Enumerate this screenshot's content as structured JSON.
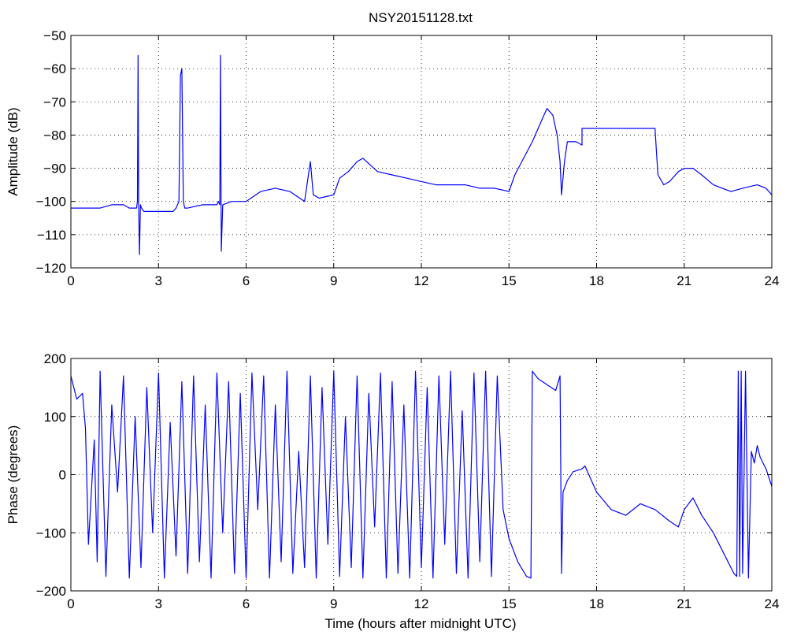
{
  "figure": {
    "title": "NSY20151128.txt",
    "xlabel": "Time (hours after midnight UTC)"
  },
  "chart_data": [
    {
      "type": "line",
      "title": "NSY20151128.txt",
      "xlabel": "",
      "ylabel": "Amplitude (dB)",
      "xlim": [
        0,
        24
      ],
      "ylim": [
        -120,
        -50
      ],
      "xticks": [
        0,
        3,
        6,
        9,
        12,
        15,
        18,
        21,
        24
      ],
      "yticks": [
        -120,
        -110,
        -100,
        -90,
        -80,
        -70,
        -60,
        -50
      ],
      "grid": true,
      "line_color": "#0000ff",
      "series": [
        {
          "x": [
            0,
            0.5,
            1.0,
            1.4,
            1.5,
            1.8,
            2.0,
            2.25,
            2.28,
            2.3,
            2.32,
            2.35,
            2.38,
            2.42,
            2.5,
            3.0,
            3.5,
            3.6,
            3.7,
            3.75,
            3.8,
            3.85,
            3.9,
            4.0,
            4.5,
            5.0,
            5.05,
            5.1,
            5.12,
            5.15,
            5.2,
            5.5,
            6.0,
            6.5,
            7.0,
            7.5,
            8.0,
            8.2,
            8.3,
            8.5,
            9.0,
            9.2,
            9.5,
            9.8,
            10.0,
            10.5,
            11.0,
            11.5,
            12.0,
            12.5,
            13.0,
            13.5,
            14.0,
            14.5,
            15.0,
            15.2,
            15.5,
            15.8,
            16.0,
            16.2,
            16.3,
            16.5,
            16.65,
            16.75,
            16.8,
            16.9,
            17.0,
            17.3,
            17.5,
            17.5,
            18.0,
            18.5,
            19.0,
            19.5,
            20.0,
            20.05,
            20.1,
            20.3,
            20.5,
            20.8,
            21.0,
            21.3,
            21.6,
            22.0,
            22.3,
            22.6,
            23.0,
            23.5,
            23.8,
            24.0
          ],
          "y": [
            -102,
            -102,
            -102,
            -101,
            -101,
            -101,
            -102,
            -102,
            -100,
            -56,
            -100,
            -116,
            -101,
            -102,
            -103,
            -103,
            -103,
            -102,
            -100,
            -62,
            -60,
            -100,
            -102,
            -102,
            -101,
            -101,
            -100,
            -101,
            -56,
            -115,
            -101,
            -100,
            -100,
            -97,
            -96,
            -97,
            -100,
            -88,
            -98,
            -99,
            -98,
            -93,
            -91,
            -88,
            -87,
            -91,
            -92,
            -93,
            -94,
            -95,
            -95,
            -95,
            -96,
            -96,
            -97,
            -92,
            -87,
            -82,
            -78,
            -74,
            -72,
            -74,
            -80,
            -88,
            -98,
            -88,
            -82,
            -82,
            -83,
            -78,
            -78,
            -78,
            -78,
            -78,
            -78,
            -85,
            -92,
            -95,
            -94,
            -91,
            -90,
            -90,
            -92,
            -95,
            -96,
            -97,
            -96,
            -95,
            -96,
            -98
          ]
        }
      ]
    },
    {
      "type": "line",
      "title": "",
      "xlabel": "Time (hours after midnight UTC)",
      "ylabel": "Phase (degrees)",
      "xlim": [
        0,
        24
      ],
      "ylim": [
        -200,
        200
      ],
      "xticks": [
        0,
        3,
        6,
        9,
        12,
        15,
        18,
        21,
        24
      ],
      "yticks": [
        -200,
        -100,
        0,
        100,
        200
      ],
      "grid": true,
      "line_color": "#0000ff",
      "series": [
        {
          "x": [
            0,
            0.2,
            0.4,
            0.5,
            0.6,
            0.8,
            0.9,
            1.0,
            1.2,
            1.4,
            1.6,
            1.8,
            2.0,
            2.2,
            2.4,
            2.6,
            2.8,
            3.0,
            3.2,
            3.4,
            3.6,
            3.8,
            4.0,
            4.2,
            4.4,
            4.6,
            4.8,
            5.0,
            5.2,
            5.4,
            5.6,
            5.8,
            6.0,
            6.2,
            6.4,
            6.6,
            6.8,
            7.0,
            7.2,
            7.4,
            7.6,
            7.8,
            8.0,
            8.2,
            8.4,
            8.6,
            8.8,
            9.0,
            9.2,
            9.4,
            9.6,
            9.8,
            10.0,
            10.2,
            10.4,
            10.6,
            10.8,
            11.0,
            11.2,
            11.4,
            11.6,
            11.8,
            12.0,
            12.2,
            12.4,
            12.6,
            12.8,
            13.0,
            13.2,
            13.4,
            13.6,
            13.8,
            14.0,
            14.2,
            14.4,
            14.6,
            14.8,
            15.0,
            15.3,
            15.6,
            15.75,
            15.8,
            16.0,
            16.3,
            16.6,
            16.75,
            16.8,
            16.85,
            17.0,
            17.2,
            17.5,
            17.6,
            18.0,
            18.5,
            19.0,
            19.5,
            20.0,
            20.5,
            20.8,
            21.0,
            21.3,
            21.6,
            22.0,
            22.4,
            22.7,
            22.8,
            22.85,
            22.9,
            22.95,
            23.0,
            23.1,
            23.2,
            23.3,
            23.4,
            23.5,
            23.6,
            23.8,
            24.0
          ],
          "y": [
            170,
            130,
            140,
            80,
            -120,
            60,
            -150,
            178,
            -175,
            120,
            -30,
            170,
            -178,
            100,
            -160,
            150,
            -100,
            175,
            -178,
            90,
            -140,
            160,
            -170,
            170,
            -150,
            120,
            -178,
            175,
            -100,
            160,
            -170,
            140,
            -178,
            175,
            -60,
            170,
            -178,
            120,
            -150,
            178,
            -170,
            40,
            -160,
            170,
            -178,
            150,
            -120,
            178,
            -175,
            100,
            -160,
            170,
            -178,
            140,
            -90,
            175,
            -178,
            160,
            -170,
            120,
            -178,
            178,
            -160,
            150,
            -178,
            170,
            -120,
            178,
            -170,
            110,
            -178,
            175,
            -150,
            178,
            -175,
            170,
            -60,
            -110,
            -150,
            -175,
            -178,
            178,
            165,
            155,
            145,
            170,
            -170,
            -30,
            -10,
            5,
            10,
            15,
            -30,
            -60,
            -70,
            -50,
            -60,
            -80,
            -90,
            -60,
            -40,
            -70,
            -100,
            -140,
            -170,
            -175,
            178,
            -175,
            178,
            -170,
            178,
            -178,
            40,
            20,
            50,
            30,
            10,
            -20
          ]
        }
      ]
    }
  ]
}
